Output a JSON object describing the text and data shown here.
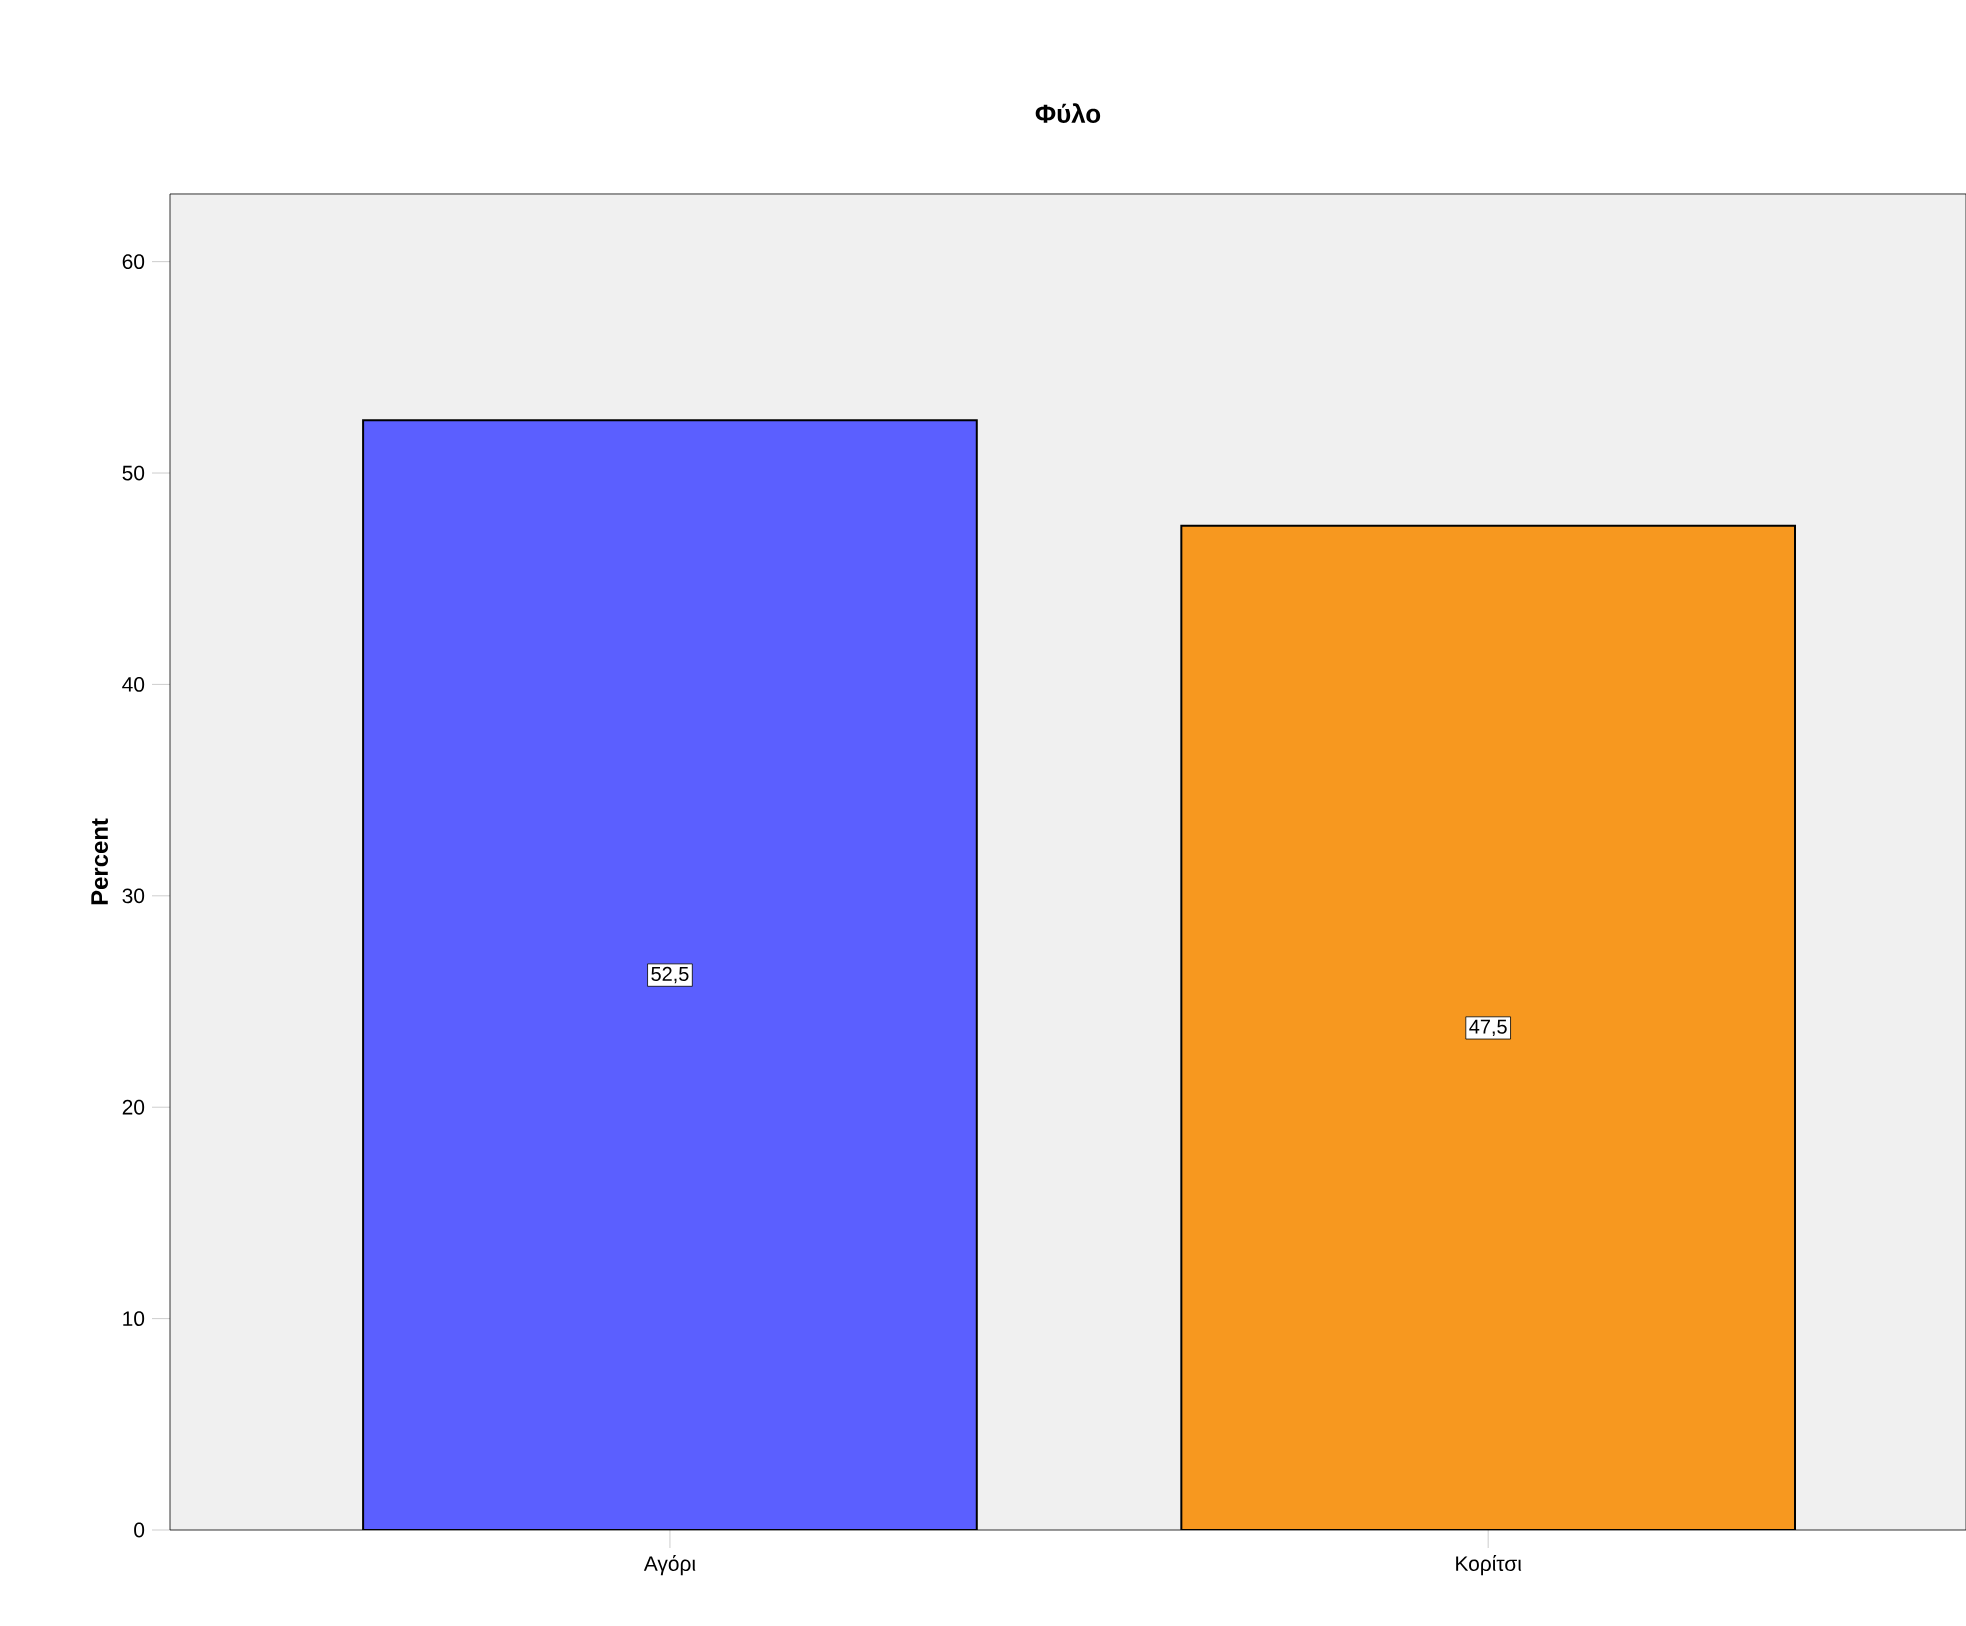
{
  "chart_data": {
    "type": "bar",
    "title": "Φύλο",
    "ylabel": "Percent",
    "categories": [
      "Αγόρι",
      "Κορίτσι"
    ],
    "values": [
      52.5,
      47.5
    ],
    "value_labels": [
      "52,5",
      "47,5"
    ],
    "colors": [
      "#5b5fff",
      "#f7981f"
    ],
    "ylim": [
      0,
      63.2
    ],
    "yticks": [
      0,
      10,
      20,
      30,
      40,
      50,
      60
    ],
    "grid": false
  }
}
